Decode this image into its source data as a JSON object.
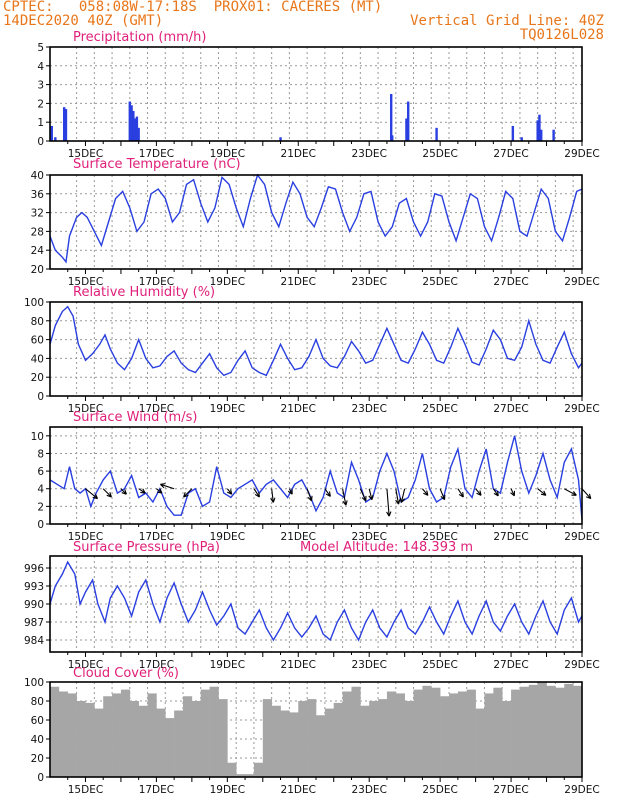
{
  "header": {
    "line1_left": "CPTEC:   058:08W-17:18S  PROX01: CACERES (MT)",
    "line2_left": "14DEC2020 40Z (GMT)",
    "line2_right": "Vertical Grid Line: 40Z",
    "line3_right": "TQ0126L028"
  },
  "colors": {
    "series": "#2a3fe0",
    "cloud": "#a6a6a6",
    "title": "#e0207a",
    "header": "#e8761a"
  },
  "chart_data": [
    {
      "type": "bar",
      "title": "Precipitation (mm/h)",
      "ylim": [
        0,
        5
      ],
      "yticks": [
        0,
        1,
        2,
        3,
        4,
        5
      ],
      "xlabels": [
        "15DEC",
        "17DEC",
        "19DEC",
        "21DEC",
        "23DEC",
        "25DEC",
        "27DEC",
        "29DEC"
      ],
      "x": [
        14.05,
        14.15,
        14.4,
        14.45,
        16.25,
        16.3,
        16.35,
        16.4,
        16.45,
        16.5,
        20.5,
        23.62,
        23.65,
        24.05,
        24.1,
        24.9,
        27.05,
        27.3,
        27.75,
        27.8,
        27.85,
        28.2
      ],
      "values": [
        0.8,
        0.2,
        1.8,
        1.7,
        2.1,
        1.9,
        1.6,
        1.2,
        1.3,
        0.7,
        0.2,
        2.5,
        0.3,
        1.2,
        2.1,
        0.7,
        0.8,
        0.2,
        1.1,
        1.4,
        0.6,
        0.6
      ]
    },
    {
      "type": "line",
      "title": "Surface Temperature (nC)",
      "ylim": [
        20,
        40
      ],
      "yticks": [
        20,
        24,
        28,
        32,
        36,
        40
      ],
      "xlabels": [
        "15DEC",
        "17DEC",
        "19DEC",
        "21DEC",
        "23DEC",
        "25DEC",
        "27DEC",
        "29DEC"
      ],
      "x": [
        14.0,
        14.15,
        14.35,
        14.45,
        14.55,
        14.75,
        14.9,
        15.05,
        15.25,
        15.45,
        15.65,
        15.85,
        16.05,
        16.25,
        16.45,
        16.65,
        16.85,
        17.05,
        17.25,
        17.45,
        17.65,
        17.85,
        18.05,
        18.25,
        18.45,
        18.65,
        18.85,
        19.05,
        19.25,
        19.45,
        19.65,
        19.85,
        20.05,
        20.25,
        20.45,
        20.65,
        20.85,
        21.05,
        21.25,
        21.45,
        21.65,
        21.85,
        22.05,
        22.25,
        22.45,
        22.65,
        22.85,
        23.05,
        23.25,
        23.45,
        23.65,
        23.85,
        24.05,
        24.25,
        24.45,
        24.65,
        24.85,
        25.05,
        25.25,
        25.45,
        25.65,
        25.85,
        26.05,
        26.25,
        26.45,
        26.65,
        26.85,
        27.05,
        27.25,
        27.45,
        27.65,
        27.85,
        28.05,
        28.25,
        28.45,
        28.65,
        28.85,
        29.0
      ],
      "values": [
        27,
        24,
        22.5,
        21.5,
        27,
        31,
        32,
        31,
        28,
        25,
        30,
        35,
        36.5,
        33,
        28,
        30,
        36,
        37,
        35,
        30,
        32,
        38,
        39,
        34,
        30,
        33,
        39.5,
        38,
        33,
        29,
        35,
        40,
        38,
        32,
        29,
        34,
        38.5,
        36,
        31,
        29,
        33,
        37.5,
        37,
        32,
        28,
        31,
        36,
        36.5,
        30,
        27,
        29,
        34,
        35,
        30,
        27,
        30,
        36,
        35.5,
        30,
        26,
        31,
        36,
        35,
        29,
        26,
        31,
        36.5,
        35,
        28,
        27,
        32,
        37,
        35,
        28,
        26,
        31,
        36.5,
        37
      ]
    },
    {
      "type": "line",
      "title": "Relative Humidity (%)",
      "ylim": [
        0,
        100
      ],
      "yticks": [
        0,
        20,
        40,
        60,
        80,
        100
      ],
      "xlabels": [
        "15DEC",
        "17DEC",
        "19DEC",
        "21DEC",
        "23DEC",
        "25DEC",
        "27DEC",
        "29DEC"
      ],
      "x": [
        14.0,
        14.15,
        14.35,
        14.5,
        14.65,
        14.8,
        15.0,
        15.2,
        15.4,
        15.55,
        15.7,
        15.9,
        16.1,
        16.3,
        16.5,
        16.7,
        16.9,
        17.1,
        17.3,
        17.5,
        17.7,
        17.9,
        18.1,
        18.3,
        18.5,
        18.7,
        18.9,
        19.1,
        19.3,
        19.5,
        19.7,
        19.9,
        20.1,
        20.3,
        20.5,
        20.7,
        20.9,
        21.1,
        21.3,
        21.5,
        21.7,
        21.9,
        22.1,
        22.3,
        22.5,
        22.7,
        22.9,
        23.1,
        23.3,
        23.5,
        23.7,
        23.9,
        24.1,
        24.3,
        24.5,
        24.7,
        24.9,
        25.1,
        25.3,
        25.5,
        25.7,
        25.9,
        26.1,
        26.3,
        26.5,
        26.7,
        26.9,
        27.1,
        27.3,
        27.5,
        27.7,
        27.9,
        28.1,
        28.3,
        28.5,
        28.7,
        28.9,
        29.0
      ],
      "values": [
        55,
        75,
        90,
        95,
        85,
        55,
        38,
        45,
        55,
        65,
        50,
        35,
        28,
        40,
        60,
        40,
        30,
        32,
        42,
        48,
        35,
        28,
        25,
        35,
        45,
        30,
        22,
        25,
        38,
        48,
        30,
        25,
        22,
        38,
        55,
        40,
        28,
        30,
        42,
        60,
        40,
        32,
        30,
        42,
        58,
        48,
        35,
        38,
        55,
        72,
        55,
        38,
        35,
        50,
        68,
        55,
        38,
        35,
        52,
        72,
        55,
        36,
        33,
        50,
        70,
        60,
        40,
        38,
        52,
        80,
        55,
        38,
        35,
        52,
        68,
        45,
        30,
        35
      ]
    },
    {
      "type": "line",
      "title": "Surface Wind (m/s)",
      "ylim": [
        0,
        11
      ],
      "yticks": [
        0,
        2,
        4,
        6,
        8,
        10
      ],
      "xlabels": [
        "15DEC",
        "17DEC",
        "19DEC",
        "21DEC",
        "23DEC",
        "25DEC",
        "27DEC",
        "29DEC"
      ],
      "x": [
        14.0,
        14.2,
        14.4,
        14.55,
        14.7,
        14.85,
        15.0,
        15.15,
        15.3,
        15.5,
        15.7,
        15.9,
        16.1,
        16.3,
        16.5,
        16.7,
        16.9,
        17.1,
        17.3,
        17.5,
        17.7,
        17.9,
        18.1,
        18.3,
        18.5,
        18.7,
        18.9,
        19.1,
        19.3,
        19.5,
        19.7,
        19.9,
        20.1,
        20.3,
        20.5,
        20.7,
        20.9,
        21.1,
        21.3,
        21.5,
        21.7,
        21.9,
        22.1,
        22.3,
        22.5,
        22.7,
        22.9,
        23.1,
        23.3,
        23.5,
        23.7,
        23.9,
        24.1,
        24.3,
        24.5,
        24.7,
        24.9,
        25.1,
        25.3,
        25.5,
        25.7,
        25.9,
        26.1,
        26.3,
        26.5,
        26.7,
        26.9,
        27.1,
        27.3,
        27.5,
        27.7,
        27.9,
        28.1,
        28.3,
        28.5,
        28.7,
        28.9,
        29.0
      ],
      "values": [
        5,
        4.5,
        4,
        6.5,
        4,
        3.5,
        4,
        2,
        3.5,
        5,
        6,
        3.5,
        4,
        5.5,
        3,
        3.5,
        2.5,
        4,
        2,
        1,
        1,
        3.5,
        4,
        2,
        2.5,
        6.5,
        3.5,
        3,
        4,
        4.5,
        5,
        3.5,
        4.5,
        5,
        4,
        3,
        4.5,
        5,
        3.5,
        1.5,
        3,
        6,
        3.5,
        3,
        7,
        5,
        2.5,
        3,
        6,
        8,
        6,
        2.5,
        3,
        5,
        8,
        4,
        2.5,
        3,
        6.5,
        8.5,
        4,
        3,
        6,
        8.5,
        4,
        3.5,
        7,
        10,
        6,
        3.5,
        5.5,
        8,
        5,
        3,
        7,
        8.5,
        5,
        0.5
      ]
    },
    {
      "type": "line",
      "title": "Surface Pressure (hPa)",
      "annotation": "Model Altitude: 148.393 m",
      "ylim": [
        982,
        998
      ],
      "yticks": [
        984,
        987,
        990,
        993,
        996
      ],
      "xlabels": [
        "15DEC",
        "17DEC",
        "19DEC",
        "21DEC",
        "23DEC",
        "25DEC",
        "27DEC",
        "29DEC"
      ],
      "x": [
        14.0,
        14.15,
        14.35,
        14.5,
        14.7,
        14.85,
        15.0,
        15.2,
        15.35,
        15.55,
        15.7,
        15.9,
        16.1,
        16.3,
        16.5,
        16.7,
        16.9,
        17.1,
        17.3,
        17.5,
        17.7,
        17.9,
        18.1,
        18.3,
        18.5,
        18.7,
        18.9,
        19.1,
        19.3,
        19.5,
        19.7,
        19.9,
        20.1,
        20.3,
        20.5,
        20.7,
        20.9,
        21.1,
        21.3,
        21.5,
        21.7,
        21.9,
        22.1,
        22.3,
        22.5,
        22.7,
        22.9,
        23.1,
        23.3,
        23.5,
        23.7,
        23.9,
        24.1,
        24.3,
        24.5,
        24.7,
        24.9,
        25.1,
        25.3,
        25.5,
        25.7,
        25.9,
        26.1,
        26.3,
        26.5,
        26.7,
        26.9,
        27.1,
        27.3,
        27.5,
        27.7,
        27.9,
        28.1,
        28.3,
        28.5,
        28.7,
        28.9,
        29.0
      ],
      "values": [
        990,
        993,
        995,
        997,
        995,
        990,
        992,
        994,
        990,
        987,
        991,
        993,
        991,
        988,
        992,
        994,
        990,
        987,
        991,
        993.5,
        990,
        987,
        989,
        992,
        989,
        986.5,
        988,
        990,
        986,
        985,
        987,
        989,
        986,
        984,
        986,
        988.5,
        986,
        984.5,
        986,
        988,
        985,
        984,
        987,
        989,
        986,
        984,
        987,
        989,
        986,
        984.5,
        987,
        989,
        986,
        985,
        987,
        989.5,
        987,
        985,
        988,
        990.5,
        987,
        985,
        988,
        990.5,
        987,
        985.5,
        988,
        990,
        987,
        985,
        988,
        990.5,
        987,
        985,
        989,
        991,
        987,
        988
      ]
    },
    {
      "type": "bar",
      "title": "Cloud Cover (%)",
      "ylim": [
        0,
        100
      ],
      "yticks": [
        0,
        20,
        40,
        60,
        80,
        100
      ],
      "xlabels": [
        "15DEC",
        "17DEC",
        "19DEC",
        "21DEC",
        "23DEC",
        "25DEC",
        "27DEC",
        "29DEC"
      ],
      "x": [
        14.0,
        14.25,
        14.5,
        14.75,
        15.0,
        15.25,
        15.5,
        15.75,
        16.0,
        16.25,
        16.5,
        16.75,
        17.0,
        17.25,
        17.5,
        17.75,
        18.0,
        18.25,
        18.5,
        18.75,
        19.0,
        19.25,
        19.5,
        19.75,
        20.0,
        20.25,
        20.5,
        20.75,
        21.0,
        21.25,
        21.5,
        21.75,
        22.0,
        22.25,
        22.5,
        22.75,
        23.0,
        23.25,
        23.5,
        23.75,
        24.0,
        24.25,
        24.5,
        24.75,
        25.0,
        25.25,
        25.5,
        25.75,
        26.0,
        26.25,
        26.5,
        26.75,
        27.0,
        27.25,
        27.5,
        27.75,
        28.0,
        28.25,
        28.5,
        28.75
      ],
      "values": [
        95,
        90,
        88,
        80,
        78,
        72,
        85,
        88,
        92,
        80,
        75,
        88,
        72,
        62,
        70,
        85,
        80,
        92,
        95,
        82,
        15,
        3,
        3,
        15,
        82,
        75,
        70,
        68,
        80,
        82,
        65,
        72,
        78,
        90,
        95,
        75,
        80,
        82,
        90,
        88,
        80,
        92,
        96,
        94,
        85,
        88,
        90,
        92,
        72,
        88,
        94,
        80,
        92,
        95,
        97,
        100,
        96,
        94,
        98,
        96
      ]
    }
  ],
  "wind_arrows": {
    "x": [
      15.0,
      15.5,
      16.0,
      16.5,
      17.0,
      17.5,
      18.0,
      19.0,
      19.75,
      20.25,
      20.75,
      21.25,
      21.75,
      22.25,
      22.75,
      23.0,
      23.5,
      23.75,
      24.0,
      24.5,
      25.0,
      25.5,
      26.0,
      26.5,
      27.0,
      27.75,
      28.5,
      29.0
    ],
    "u": [
      2.2,
      1.5,
      1.0,
      1.2,
      1.0,
      -2.5,
      -1.5,
      0.8,
      1.0,
      0.3,
      0.5,
      0.8,
      1.0,
      0.6,
      1.0,
      0.5,
      0.4,
      0.5,
      -0.6,
      1.0,
      0.8,
      1.0,
      1.0,
      0.9,
      0.6,
      1.5,
      2.2,
      1.6
    ],
    "v": [
      -1.8,
      -1.5,
      -1.0,
      -0.8,
      -0.8,
      0.8,
      -1.5,
      -1.0,
      -1.5,
      -2.5,
      -1.0,
      -2.2,
      -1.4,
      -3.0,
      -2.2,
      -2.0,
      -5.0,
      -2.8,
      -2.5,
      -1.2,
      -2.0,
      -1.5,
      -1.2,
      -1.3,
      -1.3,
      -1.2,
      -1.2,
      -1.8
    ]
  }
}
